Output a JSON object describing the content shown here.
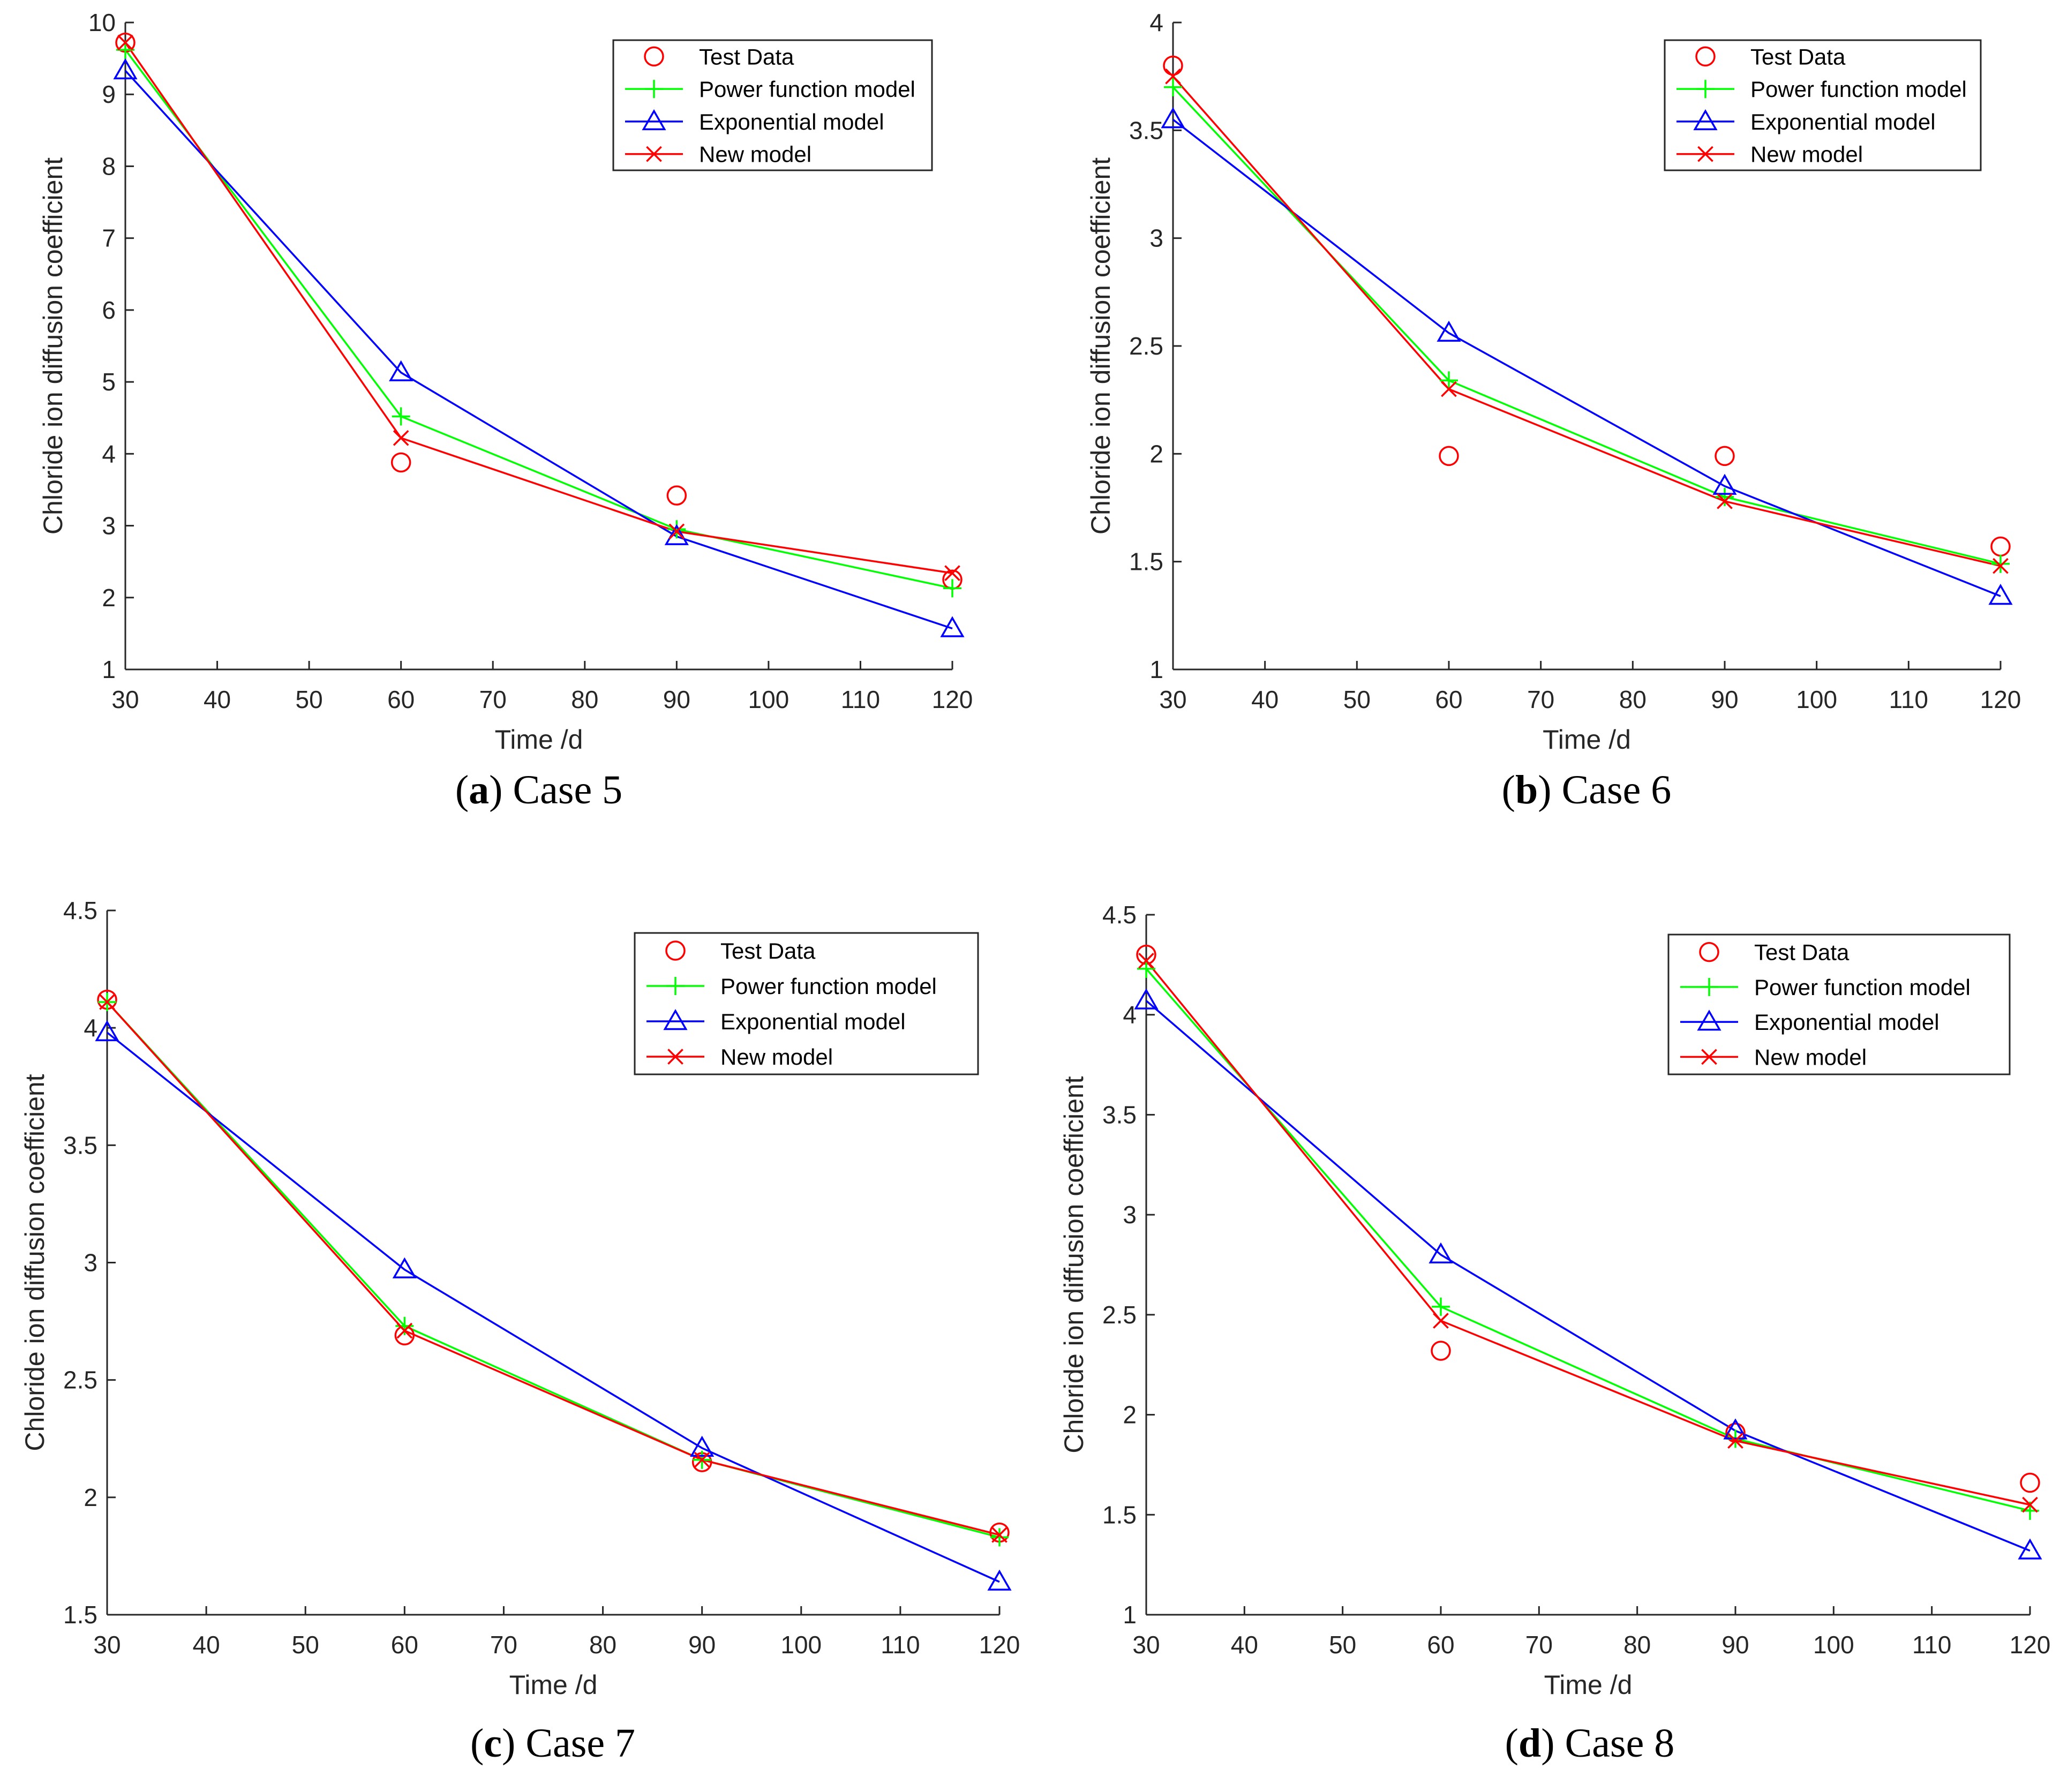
{
  "colors": {
    "test": "#ff0000",
    "power": "#00ff00",
    "exp": "#0000ff",
    "new": "#ff0000",
    "axis": "#262626"
  },
  "chart_data": [
    {
      "type": "line",
      "caption_letter": "a",
      "caption_text": "Case 5",
      "xlabel": "Time /d",
      "ylabel": "Chloride ion diffusion coefficient",
      "xlim": [
        30,
        120
      ],
      "ylim": [
        1,
        10
      ],
      "xticks": [
        "30",
        "40",
        "50",
        "60",
        "70",
        "80",
        "90",
        "100",
        "110",
        "120"
      ],
      "yticks": [
        "1",
        "2",
        "3",
        "4",
        "5",
        "6",
        "7",
        "8",
        "9",
        "10"
      ],
      "x": [
        30,
        60,
        90,
        120
      ],
      "legend_position": "top-right",
      "series": [
        {
          "name": "Test Data",
          "marker": "circle",
          "line": false,
          "values": [
            9.72,
            3.88,
            3.42,
            2.25
          ]
        },
        {
          "name": "Power function model",
          "marker": "plus",
          "line": true,
          "values": [
            9.62,
            4.52,
            2.95,
            2.13
          ]
        },
        {
          "name": "Exponential model",
          "marker": "triangle",
          "line": true,
          "values": [
            9.33,
            5.13,
            2.85,
            1.57
          ]
        },
        {
          "name": "New model",
          "marker": "x",
          "line": true,
          "values": [
            9.72,
            4.22,
            2.92,
            2.34
          ]
        }
      ]
    },
    {
      "type": "line",
      "caption_letter": "b",
      "caption_text": "Case 6",
      "xlabel": "Time /d",
      "ylabel": "Chloride ion diffusion coefficient",
      "xlim": [
        30,
        120
      ],
      "ylim": [
        1,
        4
      ],
      "xticks": [
        "30",
        "40",
        "50",
        "60",
        "70",
        "80",
        "90",
        "100",
        "110",
        "120"
      ],
      "yticks": [
        "1",
        "1.5",
        "2",
        "2.5",
        "3",
        "3.5",
        "4"
      ],
      "x": [
        30,
        60,
        90,
        120
      ],
      "legend_position": "top-right",
      "series": [
        {
          "name": "Test Data",
          "marker": "circle",
          "line": false,
          "values": [
            3.8,
            1.99,
            1.99,
            1.57
          ]
        },
        {
          "name": "Power function model",
          "marker": "plus",
          "line": true,
          "values": [
            3.7,
            2.34,
            1.8,
            1.49
          ]
        },
        {
          "name": "Exponential model",
          "marker": "triangle",
          "line": true,
          "values": [
            3.55,
            2.56,
            1.85,
            1.34
          ]
        },
        {
          "name": "New model",
          "marker": "x",
          "line": true,
          "values": [
            3.75,
            2.3,
            1.78,
            1.48
          ]
        }
      ]
    },
    {
      "type": "line",
      "caption_letter": "c",
      "caption_text": "Case 7",
      "xlabel": "Time /d",
      "ylabel": "Chloride ion diffusion coefficient",
      "xlim": [
        30,
        120
      ],
      "ylim": [
        1.5,
        4.5
      ],
      "xticks": [
        "30",
        "40",
        "50",
        "60",
        "70",
        "80",
        "90",
        "100",
        "110",
        "120"
      ],
      "yticks": [
        "1.5",
        "2",
        "2.5",
        "3",
        "3.5",
        "4",
        "4.5"
      ],
      "x": [
        30,
        60,
        90,
        120
      ],
      "legend_position": "top-right",
      "series": [
        {
          "name": "Test Data",
          "marker": "circle",
          "line": false,
          "values": [
            4.12,
            2.69,
            2.15,
            1.85
          ]
        },
        {
          "name": "Power function model",
          "marker": "plus",
          "line": true,
          "values": [
            4.11,
            2.73,
            2.16,
            1.83
          ]
        },
        {
          "name": "Exponential model",
          "marker": "triangle",
          "line": true,
          "values": [
            3.98,
            2.97,
            2.21,
            1.64
          ]
        },
        {
          "name": "New model",
          "marker": "x",
          "line": true,
          "values": [
            4.11,
            2.71,
            2.16,
            1.84
          ]
        }
      ]
    },
    {
      "type": "line",
      "caption_letter": "d",
      "caption_text": "Case 8",
      "xlabel": "Time /d",
      "ylabel": "Chloride ion diffusion coefficient",
      "xlim": [
        30,
        120
      ],
      "ylim": [
        1,
        4.5
      ],
      "xticks": [
        "30",
        "40",
        "50",
        "60",
        "70",
        "80",
        "90",
        "100",
        "110",
        "120"
      ],
      "yticks": [
        "1",
        "1.5",
        "2",
        "2.5",
        "3",
        "3.5",
        "4",
        "4.5"
      ],
      "x": [
        30,
        60,
        90,
        120
      ],
      "legend_position": "top-right",
      "series": [
        {
          "name": "Test Data",
          "marker": "circle",
          "line": false,
          "values": [
            4.3,
            2.32,
            1.91,
            1.66
          ]
        },
        {
          "name": "Power function model",
          "marker": "plus",
          "line": true,
          "values": [
            4.23,
            2.54,
            1.88,
            1.52
          ]
        },
        {
          "name": "Exponential model",
          "marker": "triangle",
          "line": true,
          "values": [
            4.07,
            2.8,
            1.92,
            1.32
          ]
        },
        {
          "name": "New model",
          "marker": "x",
          "line": true,
          "values": [
            4.27,
            2.47,
            1.87,
            1.55
          ]
        }
      ]
    }
  ]
}
